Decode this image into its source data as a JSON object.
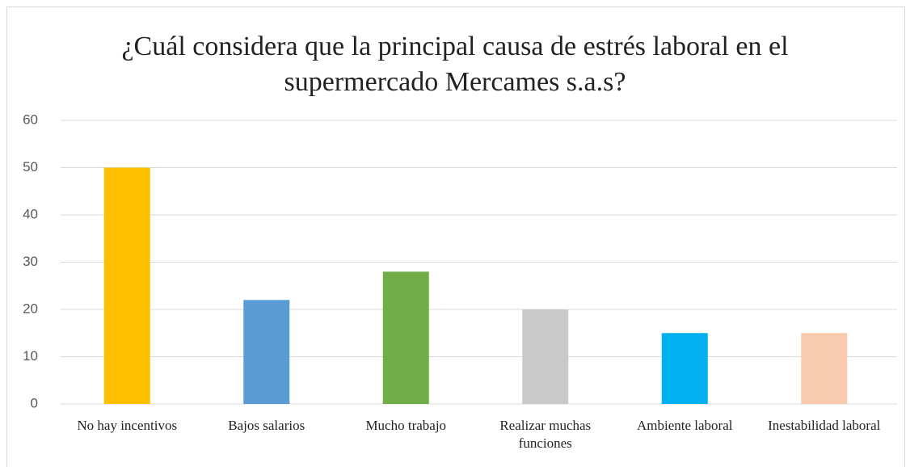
{
  "chart_data": {
    "type": "bar",
    "title": "¿Cuál considera que la principal causa de estrés laboral en el supermercado Mercames s.a.s?",
    "categories": [
      "No hay incentivos",
      "Bajos salarios",
      "Mucho trabajo",
      "Realizar muchas funciones",
      "Ambiente laboral",
      "Inestabilidad laboral"
    ],
    "values": [
      50,
      22,
      28,
      20,
      15,
      15
    ],
    "colors": [
      "#FFC000",
      "#5B9BD5",
      "#70AD47",
      "#C9C9C9",
      "#00B0F0",
      "#F8CBAD"
    ],
    "ylim": [
      0,
      60
    ],
    "yticks": [
      0,
      10,
      20,
      30,
      40,
      50,
      60
    ],
    "grid": true
  }
}
